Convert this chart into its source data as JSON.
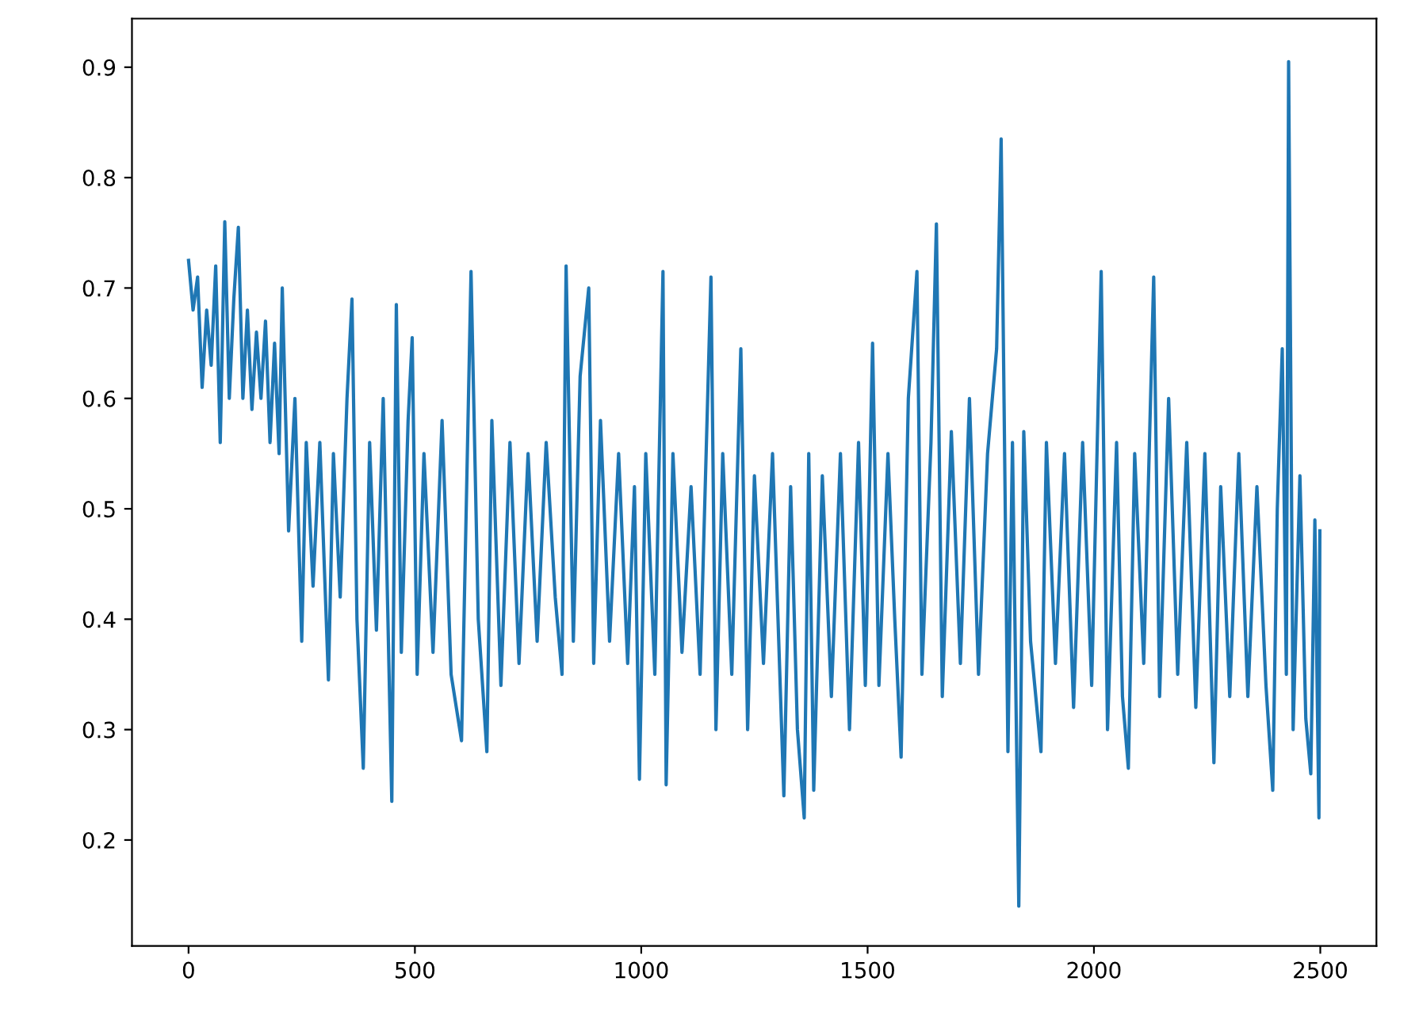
{
  "chart_data": {
    "type": "line",
    "x": [
      0,
      10,
      20,
      30,
      40,
      50,
      60,
      70,
      80,
      90,
      100,
      110,
      120,
      130,
      140,
      150,
      160,
      170,
      180,
      190,
      200,
      207,
      221,
      235,
      250,
      260,
      275,
      290,
      309,
      320,
      335,
      350,
      361,
      372,
      386,
      400,
      415,
      430,
      449,
      459,
      470,
      485,
      494,
      505,
      520,
      540,
      560,
      580,
      603,
      624,
      640,
      659,
      670,
      690,
      710,
      730,
      750,
      770,
      790,
      810,
      825,
      834,
      850,
      865,
      884,
      895,
      910,
      930,
      950,
      970,
      985,
      996,
      1010,
      1030,
      1048,
      1055,
      1070,
      1090,
      1110,
      1130,
      1154,
      1165,
      1180,
      1200,
      1220,
      1235,
      1250,
      1270,
      1290,
      1315,
      1330,
      1345,
      1360,
      1370,
      1381,
      1400,
      1420,
      1440,
      1460,
      1480,
      1495,
      1511,
      1525,
      1545,
      1560,
      1574,
      1590,
      1609,
      1620,
      1640,
      1652,
      1665,
      1685,
      1705,
      1725,
      1745,
      1765,
      1785,
      1795,
      1810,
      1820,
      1834,
      1845,
      1860,
      1883,
      1895,
      1915,
      1935,
      1955,
      1975,
      1995,
      2016,
      2030,
      2050,
      2063,
      2076,
      2090,
      2110,
      2132,
      2145,
      2165,
      2185,
      2205,
      2225,
      2245,
      2265,
      2280,
      2300,
      2320,
      2340,
      2360,
      2380,
      2395,
      2405,
      2416,
      2425,
      2430,
      2440,
      2455,
      2468,
      2479,
      2488,
      2497,
      2499
    ],
    "series": [
      {
        "color": "#1f77b4",
        "values": [
          0.725,
          0.68,
          0.71,
          0.61,
          0.68,
          0.63,
          0.72,
          0.56,
          0.76,
          0.6,
          0.69,
          0.755,
          0.6,
          0.68,
          0.59,
          0.66,
          0.6,
          0.67,
          0.56,
          0.65,
          0.55,
          0.7,
          0.48,
          0.6,
          0.38,
          0.56,
          0.43,
          0.56,
          0.345,
          0.55,
          0.42,
          0.6,
          0.69,
          0.4,
          0.265,
          0.56,
          0.39,
          0.6,
          0.235,
          0.685,
          0.37,
          0.58,
          0.655,
          0.35,
          0.55,
          0.37,
          0.58,
          0.35,
          0.29,
          0.715,
          0.4,
          0.28,
          0.58,
          0.34,
          0.56,
          0.36,
          0.55,
          0.38,
          0.56,
          0.42,
          0.35,
          0.72,
          0.38,
          0.62,
          0.7,
          0.36,
          0.58,
          0.38,
          0.55,
          0.36,
          0.52,
          0.255,
          0.55,
          0.35,
          0.715,
          0.25,
          0.55,
          0.37,
          0.52,
          0.35,
          0.71,
          0.3,
          0.55,
          0.35,
          0.645,
          0.3,
          0.53,
          0.36,
          0.55,
          0.24,
          0.52,
          0.3,
          0.22,
          0.55,
          0.245,
          0.53,
          0.33,
          0.55,
          0.3,
          0.56,
          0.34,
          0.65,
          0.34,
          0.55,
          0.4,
          0.275,
          0.6,
          0.715,
          0.35,
          0.56,
          0.758,
          0.33,
          0.57,
          0.36,
          0.6,
          0.35,
          0.55,
          0.645,
          0.835,
          0.28,
          0.56,
          0.14,
          0.57,
          0.38,
          0.28,
          0.56,
          0.36,
          0.55,
          0.32,
          0.56,
          0.34,
          0.715,
          0.3,
          0.56,
          0.33,
          0.265,
          0.55,
          0.36,
          0.71,
          0.33,
          0.6,
          0.35,
          0.56,
          0.32,
          0.55,
          0.27,
          0.52,
          0.33,
          0.55,
          0.33,
          0.52,
          0.34,
          0.245,
          0.5,
          0.645,
          0.35,
          0.905,
          0.3,
          0.53,
          0.31,
          0.26,
          0.49,
          0.22,
          0.48
        ]
      }
    ],
    "xlim": [
      -125,
      2624
    ],
    "ylim": [
      0.104,
      0.944
    ],
    "xticks": [
      0,
      500,
      1000,
      1500,
      2000,
      2500
    ],
    "yticks": [
      0.2,
      0.3,
      0.4,
      0.5,
      0.6,
      0.7,
      0.8,
      0.9
    ],
    "grid": false,
    "marker": "none",
    "line_style": "solid"
  }
}
